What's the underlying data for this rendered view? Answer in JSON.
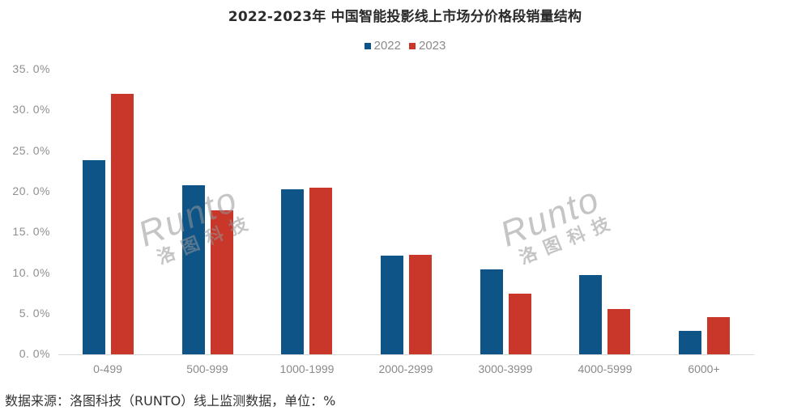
{
  "header": {
    "title": "2022-2023年 中国智能投影线上市场分价格段销量结构"
  },
  "legend": [
    {
      "label": "2022",
      "color": "#0F5487"
    },
    {
      "label": "2023",
      "color": "#C8372A"
    }
  ],
  "y_axis": {
    "ticks": [
      "0. 0%",
      "5. 0%",
      "10. 0%",
      "15. 0%",
      "20. 0%",
      "25. 0%",
      "30. 0%",
      "35. 0%"
    ]
  },
  "x_axis": {
    "ticks": [
      "0-499",
      "500-999",
      "1000-1999",
      "2000-2999",
      "3000-3999",
      "4000-5999",
      "6000+"
    ]
  },
  "watermark": {
    "en": "Runto",
    "cn": "洛图科技"
  },
  "footer": {
    "source": "数据来源：洛图科技（RUNTO）线上监测数据，单位：%"
  },
  "chart_data": {
    "type": "bar",
    "title": "2022-2023年 中国智能投影线上市场分价格段销量结构",
    "categories": [
      "0-499",
      "500-999",
      "1000-1999",
      "2000-2999",
      "3000-3999",
      "4000-5999",
      "6000+"
    ],
    "series": [
      {
        "name": "2022",
        "color": "#0F5487",
        "values": [
          23.9,
          20.8,
          20.3,
          12.1,
          10.4,
          9.7,
          2.9
        ]
      },
      {
        "name": "2023",
        "color": "#C8372A",
        "values": [
          32.0,
          17.7,
          20.5,
          12.2,
          7.5,
          5.6,
          4.6
        ]
      }
    ],
    "xlabel": "",
    "ylabel": "",
    "ylim": [
      0,
      35
    ],
    "yticks": [
      0,
      5,
      10,
      15,
      20,
      25,
      30,
      35
    ],
    "ytick_format": "percent",
    "grid": false,
    "legend_position": "top",
    "source_note": "数据来源：洛图科技（RUNTO）线上监测数据，单位：%"
  }
}
